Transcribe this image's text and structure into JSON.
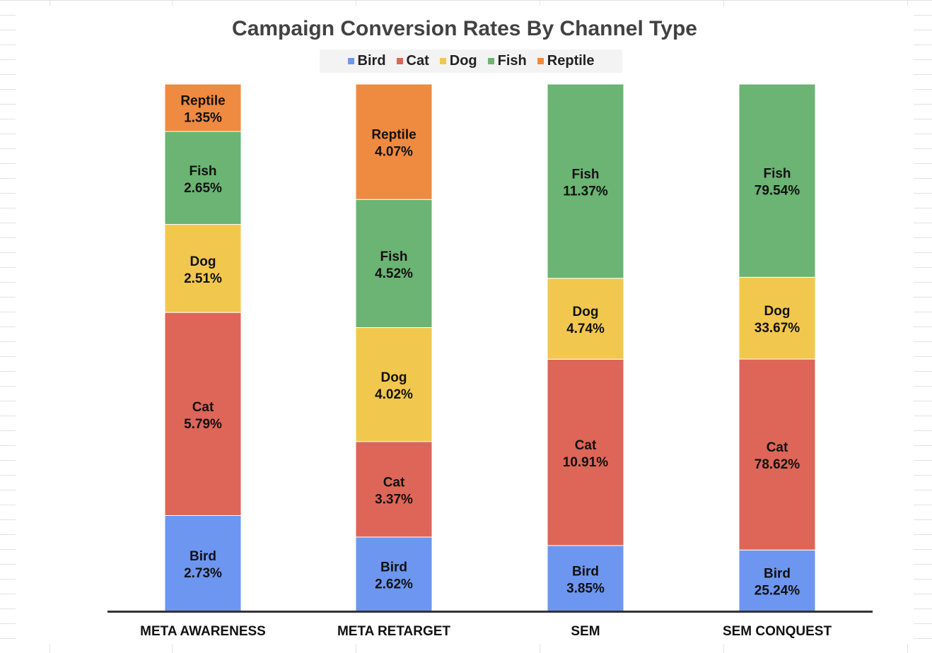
{
  "chart_data": {
    "type": "bar",
    "stacked": true,
    "title": "Campaign Conversion Rates By Channel Type",
    "xlabel": "",
    "ylabel": "",
    "grid": false,
    "legend_position": "top",
    "categories": [
      "META AWARENESS",
      "META RETARGET",
      "SEM",
      "SEM CONQUEST"
    ],
    "series": [
      {
        "name": "Bird",
        "color": "#6d96f0",
        "values": [
          2.73,
          2.62,
          3.85,
          25.24
        ],
        "labels": [
          "2.73%",
          "2.62%",
          "3.85%",
          "25.24%"
        ]
      },
      {
        "name": "Cat",
        "color": "#dd6658",
        "values": [
          5.79,
          3.37,
          10.91,
          78.62
        ],
        "labels": [
          "5.79%",
          "3.37%",
          "10.91%",
          "78.62%"
        ]
      },
      {
        "name": "Dog",
        "color": "#f2c74e",
        "values": [
          2.51,
          4.02,
          4.74,
          33.67
        ],
        "labels": [
          "2.51%",
          "4.02%",
          "4.74%",
          "33.67%"
        ]
      },
      {
        "name": "Fish",
        "color": "#6bb473",
        "values": [
          2.65,
          4.52,
          11.37,
          79.54
        ],
        "labels": [
          "2.65%",
          "4.52%",
          "11.37%",
          "79.54%"
        ]
      },
      {
        "name": "Reptile",
        "color": "#ef8a41",
        "values": [
          1.35,
          4.07,
          null,
          null
        ],
        "labels": [
          "1.35%",
          "4.07%",
          null,
          null
        ]
      }
    ]
  }
}
